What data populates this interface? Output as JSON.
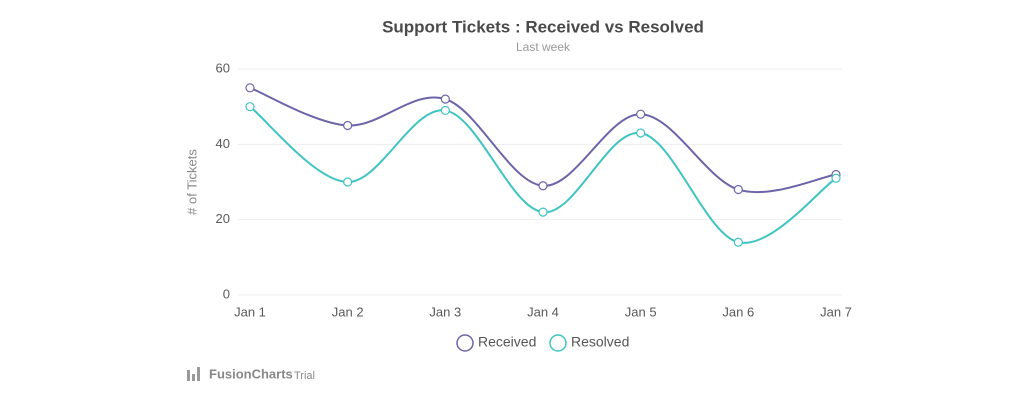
{
  "chart_data": {
    "type": "line",
    "title": "Support Tickets : Received vs Resolved",
    "subtitle": "Last week",
    "y_label": "# of Tickets",
    "categories": [
      "Jan 1",
      "Jan 2",
      "Jan 3",
      "Jan 4",
      "Jan 5",
      "Jan 6",
      "Jan 7"
    ],
    "series": [
      {
        "name": "Received",
        "color": "#6c64a8",
        "values": [
          55,
          45,
          52,
          29,
          48,
          28,
          32
        ]
      },
      {
        "name": "Resolved",
        "color": "#3fc4c2",
        "values": [
          50,
          30,
          49,
          22,
          43,
          14,
          31
        ]
      }
    ],
    "ylim": [
      0,
      60
    ],
    "yticks": [
      0,
      20,
      40,
      60
    ],
    "grid": true,
    "legend": "bottom"
  },
  "watermark": {
    "brand": "FusionCharts",
    "note": "Trial"
  }
}
